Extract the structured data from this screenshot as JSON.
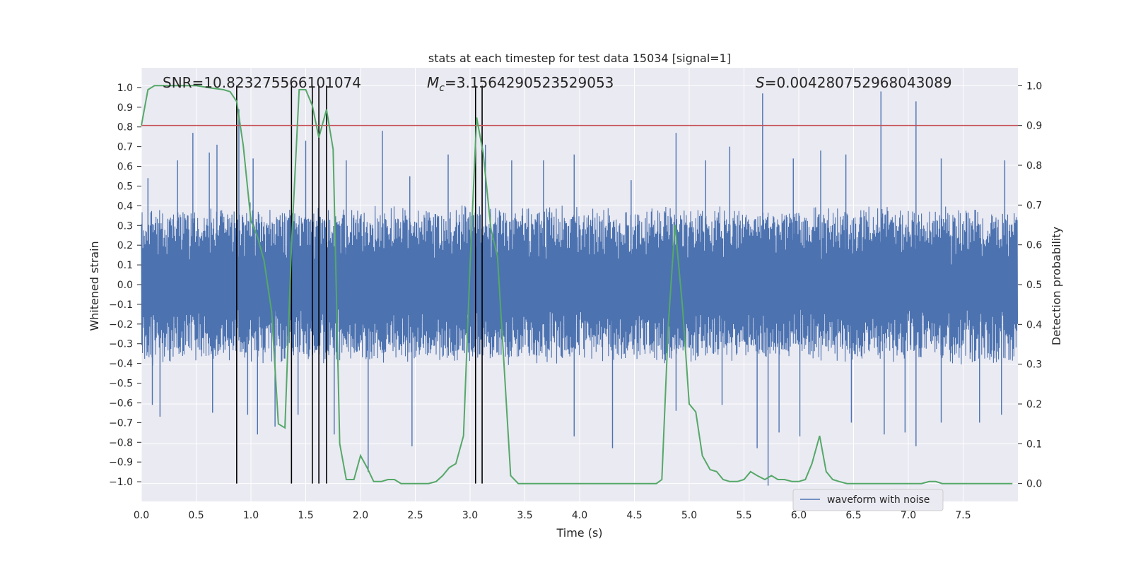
{
  "chart_data": {
    "type": "line",
    "title": "stats at each timestep for test data 15034 [signal=1]",
    "xlabel": "Time (s)",
    "ylabel": "Whitened strain",
    "y2label": "Detection probability",
    "xlim": [
      0.0,
      8.0
    ],
    "ylim": [
      -1.1,
      1.1
    ],
    "y2lim": [
      -0.045,
      1.045
    ],
    "x_ticks": [
      "0.0",
      "0.5",
      "1.0",
      "1.5",
      "2.0",
      "2.5",
      "3.0",
      "3.5",
      "4.0",
      "4.5",
      "5.0",
      "5.5",
      "6.0",
      "6.5",
      "7.0",
      "7.5"
    ],
    "x_tick_values": [
      0.0,
      0.5,
      1.0,
      1.5,
      2.0,
      2.5,
      3.0,
      3.5,
      4.0,
      4.5,
      5.0,
      5.5,
      6.0,
      6.5,
      7.0,
      7.5
    ],
    "y_ticks": [
      "1.0",
      "0.9",
      "0.8",
      "0.7",
      "0.6",
      "0.5",
      "0.4",
      "0.3",
      "0.2",
      "0.1",
      "0.0",
      "−0.1",
      "−0.2",
      "−0.3",
      "−0.4",
      "−0.5",
      "−0.6",
      "−0.7",
      "−0.8",
      "−0.9",
      "−1.0"
    ],
    "y_tick_values": [
      1.0,
      0.9,
      0.8,
      0.7,
      0.6,
      0.5,
      0.4,
      0.3,
      0.2,
      0.1,
      0.0,
      -0.1,
      -0.2,
      -0.3,
      -0.4,
      -0.5,
      -0.6,
      -0.7,
      -0.8,
      -0.9,
      -1.0
    ],
    "y2_ticks": [
      "1.0",
      "0.9",
      "0.8",
      "0.7",
      "0.6",
      "0.5",
      "0.4",
      "0.3",
      "0.2",
      "0.1",
      "0.0"
    ],
    "y2_tick_values": [
      1.0,
      0.9,
      0.8,
      0.7,
      0.6,
      0.5,
      0.4,
      0.3,
      0.2,
      0.1,
      0.0
    ],
    "annotations": {
      "snr": "SNR=10.823275566101074",
      "mc_symbol": "M",
      "mc_sub": "c",
      "mc_value": "=3.1564290523529053",
      "s_symbol": "S",
      "s_value": "=0.004280752968043089"
    },
    "legend": {
      "label": "waveform with noise",
      "placement": "lower-right"
    },
    "threshold": {
      "value": 0.9,
      "axis": "y2",
      "color": "#c44e52"
    },
    "vertical_lines": [
      0.87,
      1.37,
      1.56,
      1.62,
      1.69,
      3.05,
      3.11
    ],
    "detection_probability": {
      "name": "Detection probability",
      "color": "#55a868",
      "x": [
        0.0,
        0.06,
        0.12,
        0.25,
        0.38,
        0.5,
        0.62,
        0.75,
        0.81,
        0.87,
        0.93,
        1.0,
        1.06,
        1.12,
        1.19,
        1.25,
        1.31,
        1.37,
        1.44,
        1.5,
        1.56,
        1.62,
        1.69,
        1.75,
        1.81,
        1.87,
        1.94,
        2.0,
        2.06,
        2.12,
        2.19,
        2.25,
        2.31,
        2.37,
        2.44,
        2.5,
        2.56,
        2.62,
        2.69,
        2.75,
        2.81,
        2.87,
        2.94,
        3.0,
        3.06,
        3.12,
        3.19,
        3.25,
        3.31,
        3.37,
        3.44,
        3.5,
        3.6,
        3.8,
        4.0,
        4.2,
        4.3,
        4.5,
        4.7,
        4.75,
        4.81,
        4.87,
        4.94,
        5.0,
        5.06,
        5.12,
        5.19,
        5.25,
        5.31,
        5.37,
        5.44,
        5.5,
        5.56,
        5.62,
        5.69,
        5.75,
        5.81,
        5.87,
        5.94,
        6.0,
        6.06,
        6.12,
        6.19,
        6.25,
        6.31,
        6.37,
        6.44,
        6.5,
        6.6,
        6.8,
        7.0,
        7.12,
        7.19,
        7.25,
        7.31,
        7.5,
        7.7,
        7.95
      ],
      "y": [
        0.9,
        0.99,
        1.0,
        1.0,
        1.0,
        1.0,
        0.995,
        0.99,
        0.985,
        0.96,
        0.85,
        0.66,
        0.62,
        0.56,
        0.43,
        0.15,
        0.14,
        0.6,
        0.99,
        0.99,
        0.95,
        0.87,
        0.94,
        0.84,
        0.1,
        0.01,
        0.01,
        0.07,
        0.04,
        0.005,
        0.005,
        0.01,
        0.01,
        0.0,
        0.0,
        0.0,
        0.0,
        0.0,
        0.005,
        0.02,
        0.04,
        0.05,
        0.12,
        0.55,
        0.92,
        0.83,
        0.64,
        0.57,
        0.3,
        0.02,
        0.0,
        0.0,
        0.0,
        0.0,
        0.0,
        0.0,
        0.0,
        0.0,
        0.0,
        0.01,
        0.4,
        0.65,
        0.44,
        0.2,
        0.18,
        0.07,
        0.035,
        0.03,
        0.01,
        0.005,
        0.005,
        0.01,
        0.03,
        0.02,
        0.01,
        0.02,
        0.01,
        0.01,
        0.005,
        0.005,
        0.01,
        0.05,
        0.12,
        0.03,
        0.01,
        0.005,
        0.0,
        0.0,
        0.0,
        0.0,
        0.0,
        0.0,
        0.005,
        0.005,
        0.0,
        0.0,
        0.0,
        0.0
      ]
    },
    "waveform": {
      "name": "waveform with noise",
      "color": "#4c72b0",
      "duration_s": 8.0,
      "sample_count": 2400,
      "core_amplitude": 0.37,
      "seed": 15034,
      "peaks": [
        {
          "x": 0.06,
          "y": 0.54
        },
        {
          "x": 0.33,
          "y": 0.63
        },
        {
          "x": 0.47,
          "y": 0.77
        },
        {
          "x": 0.62,
          "y": 0.67
        },
        {
          "x": 0.69,
          "y": 0.71
        },
        {
          "x": 0.89,
          "y": 0.89
        },
        {
          "x": 1.02,
          "y": 0.64
        },
        {
          "x": 1.5,
          "y": 0.73
        },
        {
          "x": 1.87,
          "y": 0.63
        },
        {
          "x": 2.2,
          "y": 0.78
        },
        {
          "x": 2.45,
          "y": 0.55
        },
        {
          "x": 2.8,
          "y": 0.66
        },
        {
          "x": 3.14,
          "y": 0.71
        },
        {
          "x": 3.38,
          "y": 0.63
        },
        {
          "x": 3.67,
          "y": 0.63
        },
        {
          "x": 3.95,
          "y": 0.66
        },
        {
          "x": 4.47,
          "y": 0.53
        },
        {
          "x": 4.88,
          "y": 0.77
        },
        {
          "x": 5.15,
          "y": 0.63
        },
        {
          "x": 5.37,
          "y": 0.7
        },
        {
          "x": 5.67,
          "y": 0.97
        },
        {
          "x": 5.95,
          "y": 0.64
        },
        {
          "x": 6.2,
          "y": 0.68
        },
        {
          "x": 6.43,
          "y": 0.66
        },
        {
          "x": 6.75,
          "y": 0.98
        },
        {
          "x": 7.07,
          "y": 0.93
        },
        {
          "x": 7.3,
          "y": 0.64
        },
        {
          "x": 7.88,
          "y": 0.63
        }
      ],
      "troughs": [
        {
          "x": 0.1,
          "y": -0.61
        },
        {
          "x": 0.17,
          "y": -0.67
        },
        {
          "x": 0.65,
          "y": -0.65
        },
        {
          "x": 0.97,
          "y": -0.66
        },
        {
          "x": 1.06,
          "y": -0.76
        },
        {
          "x": 1.22,
          "y": -0.72
        },
        {
          "x": 1.43,
          "y": -0.66
        },
        {
          "x": 1.76,
          "y": -0.76
        },
        {
          "x": 2.07,
          "y": -0.95
        },
        {
          "x": 2.47,
          "y": -0.82
        },
        {
          "x": 3.05,
          "y": -0.79
        },
        {
          "x": 3.95,
          "y": -0.77
        },
        {
          "x": 4.3,
          "y": -0.83
        },
        {
          "x": 4.88,
          "y": -0.64
        },
        {
          "x": 5.3,
          "y": -0.61
        },
        {
          "x": 5.62,
          "y": -0.83
        },
        {
          "x": 5.72,
          "y": -1.02
        },
        {
          "x": 5.82,
          "y": -0.75
        },
        {
          "x": 6.01,
          "y": -0.77
        },
        {
          "x": 6.48,
          "y": -0.7
        },
        {
          "x": 6.78,
          "y": -0.76
        },
        {
          "x": 6.97,
          "y": -0.75
        },
        {
          "x": 7.07,
          "y": -0.82
        },
        {
          "x": 7.3,
          "y": -0.7
        },
        {
          "x": 7.65,
          "y": -0.7
        },
        {
          "x": 7.85,
          "y": -0.66
        }
      ]
    }
  }
}
